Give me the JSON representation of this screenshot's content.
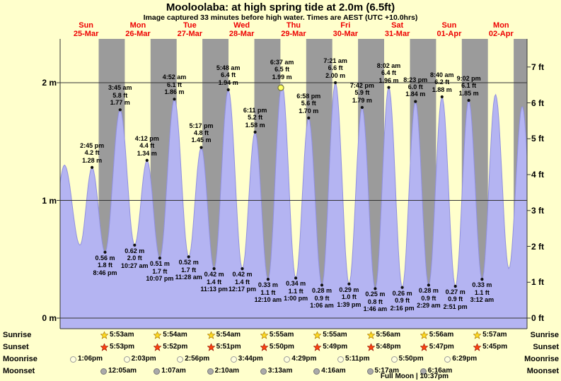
{
  "title": "Mooloolaba: at high  spring tide at 2.0m (6.5ft)",
  "subtitle": "Image captured 33 minutes before high water. Times are AEST (UTC +10.0hrs)",
  "colors": {
    "page_bg": "#ffffcc",
    "night_band": "#9b9b9b",
    "tide_fill": "#b4b4f2",
    "tide_stroke": "#9090e0",
    "day_label": "#ee0000",
    "current_marker_fill": "#ffff66",
    "current_marker_stroke": "#777733"
  },
  "chart_data": {
    "type": "area",
    "title": "Mooloolaba tide height by day",
    "ylabel_left": "m",
    "ylabel_right": "ft",
    "ylim_m": [
      0,
      2.37
    ],
    "hours_total": 216,
    "grid": true,
    "x_axis": {
      "days": [
        {
          "name": "Sun",
          "date": "25-Mar"
        },
        {
          "name": "Mon",
          "date": "26-Mar"
        },
        {
          "name": "Tue",
          "date": "27-Mar"
        },
        {
          "name": "Wed",
          "date": "28-Mar"
        },
        {
          "name": "Thu",
          "date": "29-Mar"
        },
        {
          "name": "Fri",
          "date": "30-Mar"
        },
        {
          "name": "Sat",
          "date": "31-Mar"
        },
        {
          "name": "Sun",
          "date": "01-Apr"
        },
        {
          "name": "Mon",
          "date": "02-Apr"
        }
      ]
    },
    "y_axis_left": {
      "unit": "m",
      "ticks": [
        {
          "label": "2 m",
          "value": 2
        },
        {
          "label": "1 m",
          "value": 1
        },
        {
          "label": "0 m",
          "value": 0
        }
      ]
    },
    "y_axis_right": {
      "unit": "ft",
      "ticks": [
        {
          "label": "7 ft",
          "value": 7
        },
        {
          "label": "6 ft",
          "value": 6
        },
        {
          "label": "5 ft",
          "value": 5
        },
        {
          "label": "4 ft",
          "value": 4
        },
        {
          "label": "3 ft",
          "value": 3
        },
        {
          "label": "2 ft",
          "value": 2
        },
        {
          "label": "1 ft",
          "value": 1
        },
        {
          "label": "0 ft",
          "value": 0
        }
      ]
    },
    "extremes": [
      {
        "t": -4.5,
        "h": 0.58,
        "kind": "helper"
      },
      {
        "t": 2.0,
        "h": 1.3,
        "kind": "helper"
      },
      {
        "t": 9.2,
        "h": 0.62,
        "kind": "helper"
      },
      {
        "t": 14.75,
        "h": 1.28,
        "kind": "high",
        "time": "2:45 pm",
        "ft": "4.2 ft",
        "m": "1.28 m"
      },
      {
        "t": 20.77,
        "h": 0.56,
        "kind": "low",
        "m": "0.56 m",
        "ft": "1.8 ft",
        "time": "8:46 pm"
      },
      {
        "t": 27.75,
        "h": 1.77,
        "kind": "high",
        "time": "3:45 am",
        "ft": "5.8 ft",
        "m": "1.77 m"
      },
      {
        "t": 34.45,
        "h": 0.62,
        "kind": "low",
        "m": "0.62 m",
        "ft": "2.0 ft",
        "time": "10:27 am"
      },
      {
        "t": 40.2,
        "h": 1.34,
        "kind": "high",
        "time": "4:12 pm",
        "ft": "4.4 ft",
        "m": "1.34 m"
      },
      {
        "t": 46.12,
        "h": 0.51,
        "kind": "low",
        "m": "0.51 m",
        "ft": "1.7 ft",
        "time": "10:07 pm"
      },
      {
        "t": 52.87,
        "h": 1.86,
        "kind": "high",
        "time": "4:52 am",
        "ft": "6.1 ft",
        "m": "1.86 m"
      },
      {
        "t": 59.47,
        "h": 0.52,
        "kind": "low",
        "m": "0.52 m",
        "ft": "1.7 ft",
        "time": "11:28 am"
      },
      {
        "t": 65.28,
        "h": 1.45,
        "kind": "high",
        "time": "5:17 pm",
        "ft": "4.8 ft",
        "m": "1.45 m"
      },
      {
        "t": 71.22,
        "h": 0.42,
        "kind": "low",
        "m": "0.42 m",
        "ft": "1.4 ft",
        "time": "11:13 pm"
      },
      {
        "t": 77.8,
        "h": 1.94,
        "kind": "high",
        "time": "5:48 am",
        "ft": "6.4 ft",
        "m": "1.94 m"
      },
      {
        "t": 84.28,
        "h": 0.42,
        "kind": "low",
        "m": "0.42 m",
        "ft": "1.4 ft",
        "time": "12:17 pm"
      },
      {
        "t": 90.18,
        "h": 1.58,
        "kind": "high",
        "time": "6:11 pm",
        "ft": "5.2 ft",
        "m": "1.58 m"
      },
      {
        "t": 96.17,
        "h": 0.33,
        "kind": "low",
        "m": "0.33 m",
        "ft": "1.1 ft",
        "time": "12:10 am"
      },
      {
        "t": 102.62,
        "h": 1.99,
        "kind": "high",
        "time": "6:37 am",
        "ft": "6.5 ft",
        "m": "1.99 m",
        "current": true
      },
      {
        "t": 109.0,
        "h": 0.34,
        "kind": "low",
        "m": "0.34 m",
        "ft": "1.1 ft",
        "time": "1:00 pm"
      },
      {
        "t": 114.97,
        "h": 1.7,
        "kind": "high",
        "time": "6:58 pm",
        "ft": "5.6 ft",
        "m": "1.70 m"
      },
      {
        "t": 121.1,
        "h": 0.28,
        "kind": "low",
        "m": "0.28 m",
        "ft": "0.9 ft",
        "time": "1:06 am"
      },
      {
        "t": 127.35,
        "h": 2.0,
        "kind": "high",
        "time": "7:21 am",
        "ft": "6.6 ft",
        "m": "2.00 m"
      },
      {
        "t": 133.65,
        "h": 0.29,
        "kind": "low",
        "m": "0.29 m",
        "ft": "1.0 ft",
        "time": "1:39 pm"
      },
      {
        "t": 139.7,
        "h": 1.79,
        "kind": "high",
        "time": "7:42 pm",
        "ft": "5.9 ft",
        "m": "1.79 m"
      },
      {
        "t": 145.77,
        "h": 0.25,
        "kind": "low",
        "m": "0.25 m",
        "ft": "0.8 ft",
        "time": "1:46 am"
      },
      {
        "t": 152.03,
        "h": 1.96,
        "kind": "high",
        "time": "8:02 am",
        "ft": "6.4 ft",
        "m": "1.96 m"
      },
      {
        "t": 158.27,
        "h": 0.26,
        "kind": "low",
        "m": "0.26 m",
        "ft": "0.9 ft",
        "time": "2:16 pm"
      },
      {
        "t": 164.38,
        "h": 1.84,
        "kind": "high",
        "time": "8:23 pm",
        "ft": "6.0 ft",
        "m": "1.84 m"
      },
      {
        "t": 170.48,
        "h": 0.28,
        "kind": "low",
        "m": "0.28 m",
        "ft": "0.9 ft",
        "time": "2:29 am"
      },
      {
        "t": 176.67,
        "h": 1.88,
        "kind": "high",
        "time": "8:40 am",
        "ft": "6.2 ft",
        "m": "1.88 m"
      },
      {
        "t": 182.85,
        "h": 0.27,
        "kind": "low",
        "m": "0.27 m",
        "ft": "0.9 ft",
        "time": "2:51 pm"
      },
      {
        "t": 189.03,
        "h": 1.85,
        "kind": "high",
        "time": "9:02 pm",
        "ft": "6.1 ft",
        "m": "1.85 m"
      },
      {
        "t": 195.2,
        "h": 0.33,
        "kind": "low",
        "m": "0.33 m",
        "ft": "1.1 ft",
        "time": "3:12 am"
      },
      {
        "t": 201.4,
        "h": 1.9,
        "kind": "helper"
      },
      {
        "t": 207.6,
        "h": 0.42,
        "kind": "helper"
      },
      {
        "t": 213.8,
        "h": 1.8,
        "kind": "helper"
      },
      {
        "t": 219.5,
        "h": 0.5,
        "kind": "helper"
      }
    ],
    "current_time_marker": {
      "t": 102.1,
      "note": "33 minutes before high water"
    }
  },
  "astro": {
    "rows": [
      {
        "label": "Sunrise",
        "icon": "sunrise-star-icon",
        "icon_fill": "#ffdd22",
        "icon_stroke": "#aa7700",
        "times": [
          "5:53am",
          "5:54am",
          "5:54am",
          "5:55am",
          "5:55am",
          "5:56am",
          "5:56am",
          "5:57am"
        ]
      },
      {
        "label": "Sunset",
        "icon": "sunset-star-icon",
        "icon_fill": "#ff4411",
        "icon_stroke": "#991100",
        "times": [
          "5:53pm",
          "5:52pm",
          "5:51pm",
          "5:50pm",
          "5:49pm",
          "5:48pm",
          "5:47pm",
          "5:45pm"
        ]
      },
      {
        "label": "Moonrise",
        "icon": "moonrise-circle-icon",
        "icon_fill": "#ffffdd",
        "icon_stroke": "#999999",
        "times": [
          "1:06pm",
          "2:03pm",
          "2:56pm",
          "3:44pm",
          "4:29pm",
          "5:11pm",
          "5:50pm",
          "6:29pm"
        ]
      },
      {
        "label": "Moonset",
        "icon": "moonset-circle-icon",
        "icon_fill": "#aaaaaa",
        "icon_stroke": "#777777",
        "times": [
          "12:05am",
          "1:07am",
          "2:10am",
          "3:13am",
          "4:16am",
          "5:17am",
          "6:16am"
        ]
      }
    ],
    "full_moon_note": "Full Moon | 10:37pm"
  }
}
